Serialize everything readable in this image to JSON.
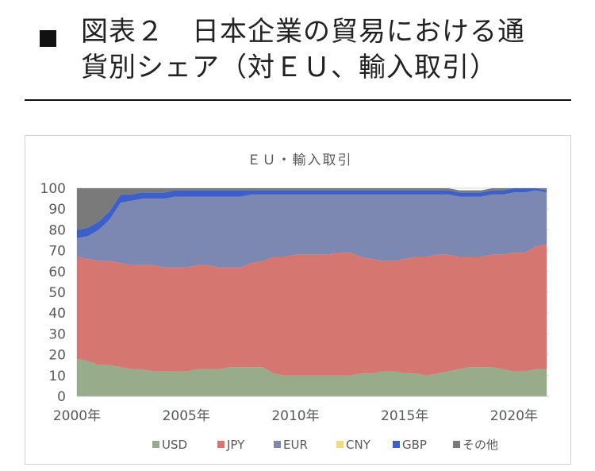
{
  "heading": {
    "title": "図表２　日本企業の貿易における通\n貨別シェア（対ＥＵ、輸入取引）"
  },
  "colors": {
    "USD": "#98ab8b",
    "JPY": "#d67670",
    "EUR": "#7d88b2",
    "CNY": "#f2da7f",
    "GBP": "#3c5fca",
    "OTHER": "#7a7a7a"
  },
  "chart_data": {
    "type": "area",
    "title": "ＥＵ・輸入取引",
    "xlabel": "",
    "ylabel": "",
    "stacked": true,
    "ylim": [
      0,
      100
    ],
    "yticks": [
      0,
      10,
      20,
      30,
      40,
      50,
      60,
      70,
      80,
      90,
      100
    ],
    "xlim": [
      2000.0,
      2021.6
    ],
    "xticks": [
      2000,
      2005,
      2010,
      2015,
      2020
    ],
    "xtick_labels": [
      "2000年",
      "2005年",
      "2010年",
      "2015年",
      "2020年"
    ],
    "legend_position": "bottom",
    "grid": true,
    "x": [
      2000.0,
      2000.5,
      2001.0,
      2001.5,
      2002.0,
      2002.5,
      2003.0,
      2003.5,
      2004.0,
      2004.5,
      2005.0,
      2005.5,
      2006.0,
      2006.5,
      2007.0,
      2007.5,
      2008.0,
      2008.5,
      2009.0,
      2009.5,
      2010.0,
      2010.5,
      2011.0,
      2011.5,
      2012.0,
      2012.5,
      2013.0,
      2013.5,
      2014.0,
      2014.5,
      2015.0,
      2015.5,
      2016.0,
      2016.5,
      2017.0,
      2017.5,
      2018.0,
      2018.5,
      2019.0,
      2019.5,
      2020.0,
      2020.5,
      2021.0,
      2021.5
    ],
    "series": [
      {
        "name": "USD",
        "values": [
          18,
          17,
          15,
          15,
          14,
          13,
          13,
          12,
          12,
          12,
          12,
          13,
          13,
          13,
          14,
          14,
          14,
          14,
          11,
          10,
          10,
          10,
          10,
          10,
          10,
          10,
          11,
          11,
          12,
          12,
          11,
          11,
          10,
          11,
          12,
          13,
          14,
          14,
          14,
          13,
          12,
          12,
          13,
          13
        ]
      },
      {
        "name": "JPY",
        "values": [
          49,
          49,
          50,
          50,
          50,
          50,
          50,
          51,
          50,
          50,
          50,
          50,
          50,
          49,
          48,
          48,
          50,
          51,
          56,
          57,
          58,
          58,
          58,
          58,
          59,
          59,
          56,
          55,
          53,
          53,
          55,
          56,
          57,
          57,
          56,
          54,
          53,
          53,
          54,
          55,
          57,
          57,
          59,
          60
        ]
      },
      {
        "name": "EUR",
        "values": [
          9,
          11,
          15,
          20,
          29,
          31,
          32,
          32,
          33,
          34,
          34,
          33,
          33,
          34,
          34,
          34,
          33,
          32,
          30,
          30,
          29,
          29,
          29,
          29,
          28,
          28,
          30,
          31,
          32,
          32,
          31,
          30,
          30,
          29,
          29,
          29,
          29,
          29,
          29,
          29,
          29,
          29,
          27,
          25
        ]
      },
      {
        "name": "CNY",
        "values": [
          0,
          0,
          0,
          0,
          0,
          0,
          0,
          0,
          0,
          0,
          0,
          0,
          0,
          0,
          0,
          0,
          0,
          0,
          0,
          0,
          0,
          0,
          0,
          0,
          0,
          0,
          0,
          0,
          0,
          0,
          0,
          0,
          0,
          0,
          0,
          0,
          0,
          0,
          0,
          0,
          0,
          0,
          0,
          0
        ]
      },
      {
        "name": "GBP",
        "values": [
          4,
          4,
          4,
          4,
          4,
          3,
          3,
          3,
          3,
          3,
          3,
          3,
          3,
          3,
          3,
          3,
          2,
          2,
          2,
          2,
          2,
          2,
          2,
          2,
          2,
          2,
          2,
          2,
          2,
          2,
          2,
          2,
          2,
          2,
          2,
          2,
          2,
          2,
          2,
          2,
          2,
          2,
          1,
          1
        ]
      },
      {
        "name": "その他",
        "values": [
          20,
          19,
          16,
          11,
          3,
          3,
          2,
          2,
          2,
          1,
          1,
          1,
          1,
          1,
          1,
          1,
          1,
          1,
          1,
          1,
          1,
          1,
          1,
          1,
          1,
          1,
          1,
          1,
          1,
          1,
          1,
          1,
          1,
          1,
          1,
          1,
          1,
          1,
          1,
          1,
          0,
          0,
          0,
          1
        ]
      }
    ]
  }
}
